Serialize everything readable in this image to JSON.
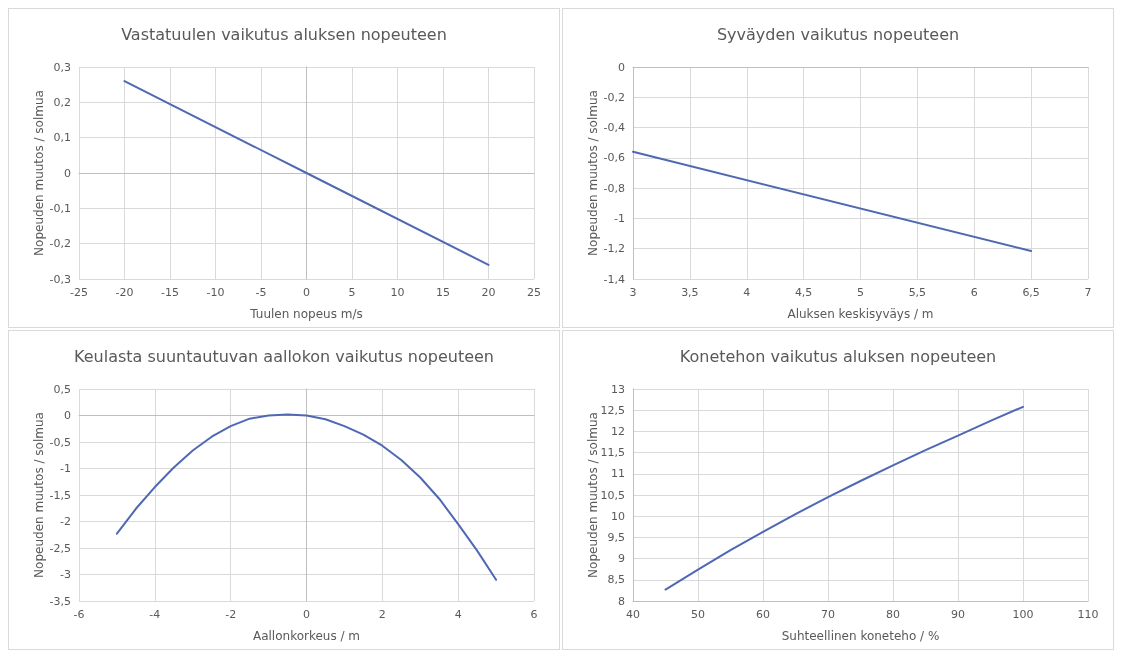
{
  "chart_data": [
    {
      "type": "line",
      "title": "Vastatuulen vaikutus aluksen nopeuteen",
      "xlabel": "Tuulen nopeus m/s",
      "ylabel": "Nopeuden muutos / solmua",
      "x": [
        -20,
        0,
        20
      ],
      "series": [
        {
          "color": "#4f68b4",
          "values": [
            0.26,
            0,
            -0.26
          ]
        }
      ],
      "xlim": [
        -25,
        25
      ],
      "xticks": [
        -25,
        -20,
        -15,
        -10,
        -5,
        0,
        5,
        10,
        15,
        20,
        25
      ],
      "ylim": [
        -0.3,
        0.3
      ],
      "yticks": [
        {
          "value": -0.3,
          "label": "-0,3"
        },
        {
          "value": -0.2,
          "label": "-0,2"
        },
        {
          "value": -0.1,
          "label": "-0,1"
        },
        0,
        {
          "value": 0.1,
          "label": "0,1"
        },
        {
          "value": 0.2,
          "label": "0,2"
        },
        {
          "value": 0.3,
          "label": "0,3"
        }
      ],
      "grid": true,
      "marker": "none"
    },
    {
      "type": "line",
      "title": "Syväyden vaikutus nopeuteen",
      "xlabel": "Aluksen keskisyväys / m",
      "ylabel": "Nopeuden muutos / solmua",
      "x": [
        3,
        6.5
      ],
      "series": [
        {
          "color": "#4f68b4",
          "values": [
            -0.56,
            -1.215
          ]
        }
      ],
      "xlim": [
        3,
        7
      ],
      "xticks": [
        3,
        {
          "value": 3.5,
          "label": "3,5"
        },
        4,
        {
          "value": 4.5,
          "label": "4,5"
        },
        5,
        {
          "value": 5.5,
          "label": "5,5"
        },
        6,
        {
          "value": 6.5,
          "label": "6,5"
        },
        7
      ],
      "ylim": [
        -1.4,
        0
      ],
      "yticks": [
        {
          "value": -1.4,
          "label": "-1,4"
        },
        {
          "value": -1.2,
          "label": "-1,2"
        },
        -1,
        {
          "value": -0.8,
          "label": "-0,8"
        },
        {
          "value": -0.6,
          "label": "-0,6"
        },
        {
          "value": -0.4,
          "label": "-0,4"
        },
        {
          "value": -0.2,
          "label": "-0,2"
        },
        0
      ],
      "grid": true,
      "marker": "none"
    },
    {
      "type": "line",
      "title": "Keulasta suuntautuvan aallokon vaikutus nopeuteen",
      "xlabel": "Aallonkorkeus / m",
      "ylabel": "Nopeuden muutos / solmua",
      "x": [
        -5,
        -4.5,
        -4,
        -3.5,
        -3,
        -2.5,
        -2,
        -1.5,
        -1,
        -0.5,
        0,
        0.5,
        1,
        1.5,
        2,
        2.5,
        3,
        3.5,
        4,
        4.5,
        5
      ],
      "series": [
        {
          "color": "#4f68b4",
          "values": [
            -2.23,
            -1.76,
            -1.35,
            -0.98,
            -0.66,
            -0.4,
            -0.2,
            -0.06,
            0,
            0.02,
            0,
            -0.07,
            -0.2,
            -0.36,
            -0.57,
            -0.84,
            -1.17,
            -1.57,
            -2.05,
            -2.55,
            -3.1
          ]
        }
      ],
      "xlim": [
        -6,
        6
      ],
      "xticks": [
        -6,
        -4,
        -2,
        0,
        2,
        4,
        6
      ],
      "ylim": [
        -3.5,
        0.5
      ],
      "yticks": [
        {
          "value": -3.5,
          "label": "-3,5"
        },
        -3,
        {
          "value": -2.5,
          "label": "-2,5"
        },
        -2,
        {
          "value": -1.5,
          "label": "-1,5"
        },
        -1,
        {
          "value": -0.5,
          "label": "-0,5"
        },
        0,
        {
          "value": 0.5,
          "label": "0,5"
        }
      ],
      "grid": true,
      "marker": "none"
    },
    {
      "type": "line",
      "title": "Konetehon vaikutus aluksen nopeuteen",
      "xlabel": "Suhteellinen koneteho / %",
      "ylabel": "Nopeuden muutos / solmua",
      "x": [
        45,
        50,
        55,
        60,
        65,
        70,
        75,
        80,
        85,
        90,
        95,
        100
      ],
      "series": [
        {
          "color": "#4f68b4",
          "values": [
            8.27,
            8.74,
            9.2,
            9.63,
            10.05,
            10.45,
            10.83,
            11.2,
            11.56,
            11.9,
            12.25,
            12.58
          ]
        }
      ],
      "xlim": [
        40,
        110
      ],
      "xticks": [
        40,
        50,
        60,
        70,
        80,
        90,
        100,
        110
      ],
      "ylim": [
        8,
        13
      ],
      "yticks": [
        8,
        {
          "value": 8.5,
          "label": "8,5"
        },
        9,
        {
          "value": 9.5,
          "label": "9,5"
        },
        10,
        {
          "value": 10.5,
          "label": "10,5"
        },
        11,
        {
          "value": 11.5,
          "label": "11,5"
        },
        12,
        {
          "value": 12.5,
          "label": "12,5"
        },
        13
      ],
      "grid": true,
      "marker": "none"
    }
  ]
}
